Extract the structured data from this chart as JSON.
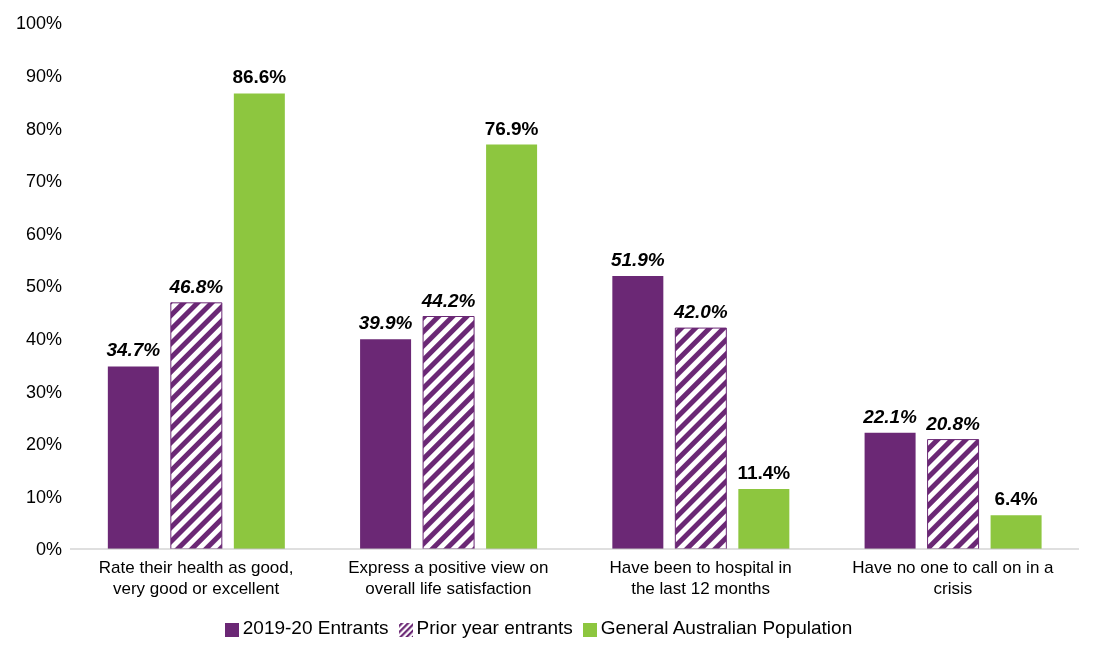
{
  "chart_data": {
    "type": "bar",
    "categories": [
      "Rate their health as good, very good or excellent",
      "Express a positive view on overall life satisfaction",
      "Have been to hospital in the last 12 months",
      "Have no one to call on in a crisis"
    ],
    "series": [
      {
        "name": "2019-20 Entrants",
        "color": "#6b2875",
        "values": [
          34.7,
          39.9,
          51.9,
          22.1
        ],
        "value_labels": [
          "34.7%",
          "39.9%",
          "51.9%",
          "22.1%"
        ]
      },
      {
        "name": "Prior year entrants",
        "color": "#6b2875",
        "values": [
          46.8,
          44.2,
          42.0,
          20.8
        ],
        "value_labels": [
          "46.8%",
          "44.2%",
          "42.0%",
          "20.8%"
        ]
      },
      {
        "name": "General Australian Population",
        "color": "#8dc63f",
        "values": [
          86.6,
          76.9,
          11.4,
          6.4
        ],
        "value_labels": [
          "86.6%",
          "76.9%",
          "11.4%",
          "6.4%"
        ]
      }
    ],
    "ylim": [
      0,
      100
    ],
    "yticks": [
      {
        "value": 0,
        "label": "0%"
      },
      {
        "value": 10,
        "label": "10%"
      },
      {
        "value": 20,
        "label": "20%"
      },
      {
        "value": 30,
        "label": "30%"
      },
      {
        "value": 40,
        "label": "40%"
      },
      {
        "value": 50,
        "label": "50%"
      },
      {
        "value": 60,
        "label": "60%"
      },
      {
        "value": 70,
        "label": "70%"
      },
      {
        "value": 80,
        "label": "80%"
      },
      {
        "value": 90,
        "label": "90%"
      },
      {
        "value": 100,
        "label": "100%"
      }
    ],
    "grid": false,
    "legend": "bottom"
  }
}
